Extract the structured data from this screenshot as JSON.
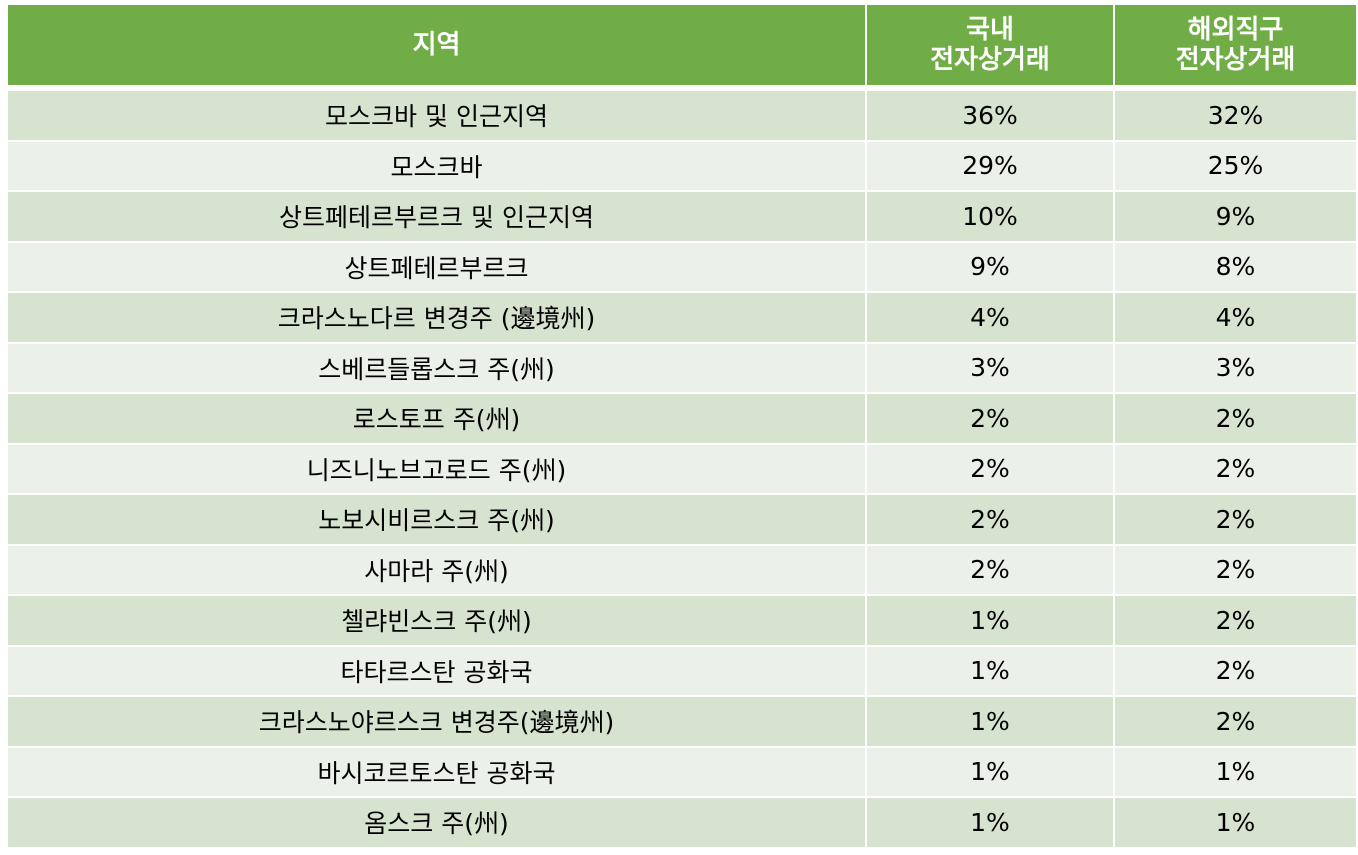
{
  "table": {
    "headers": {
      "region": "지역",
      "domestic_line1": "국내",
      "domestic_line2": "전자상거래",
      "crossborder_line1": "해외직구",
      "crossborder_line2": "전자상거래"
    },
    "rows": [
      {
        "region": "모스크바 및 인근지역",
        "domestic": "36%",
        "crossborder": "32%"
      },
      {
        "region": "모스크바",
        "domestic": "29%",
        "crossborder": "25%"
      },
      {
        "region": "상트페테르부르크 및 인근지역",
        "domestic": "10%",
        "crossborder": "9%"
      },
      {
        "region": "상트페테르부르크",
        "domestic": "9%",
        "crossborder": "8%"
      },
      {
        "region": "크라스노다르 변경주 (邊境州)",
        "domestic": "4%",
        "crossborder": "4%"
      },
      {
        "region": "스베르들롭스크 주(州)",
        "domestic": "3%",
        "crossborder": "3%"
      },
      {
        "region": "로스토프 주(州)",
        "domestic": "2%",
        "crossborder": "2%"
      },
      {
        "region": "니즈니노브고로드 주(州)",
        "domestic": "2%",
        "crossborder": "2%"
      },
      {
        "region": "노보시비르스크 주(州)",
        "domestic": "2%",
        "crossborder": "2%"
      },
      {
        "region": "사마라 주(州)",
        "domestic": "2%",
        "crossborder": "2%"
      },
      {
        "region": "첼랴빈스크 주(州)",
        "domestic": "1%",
        "crossborder": "2%"
      },
      {
        "region": "타타르스탄 공화국",
        "domestic": "1%",
        "crossborder": "2%"
      },
      {
        "region": "크라스노야르스크 변경주(邊境州)",
        "domestic": "1%",
        "crossborder": "2%"
      },
      {
        "region": "바시코르토스탄 공화국",
        "domestic": "1%",
        "crossborder": "1%"
      },
      {
        "region": "옴스크 주(州)",
        "domestic": "1%",
        "crossborder": "1%"
      }
    ]
  },
  "colors": {
    "header_bg": "#70ad47",
    "row_odd_bg": "#d5e3cf",
    "row_even_bg": "#ebf1e9"
  }
}
